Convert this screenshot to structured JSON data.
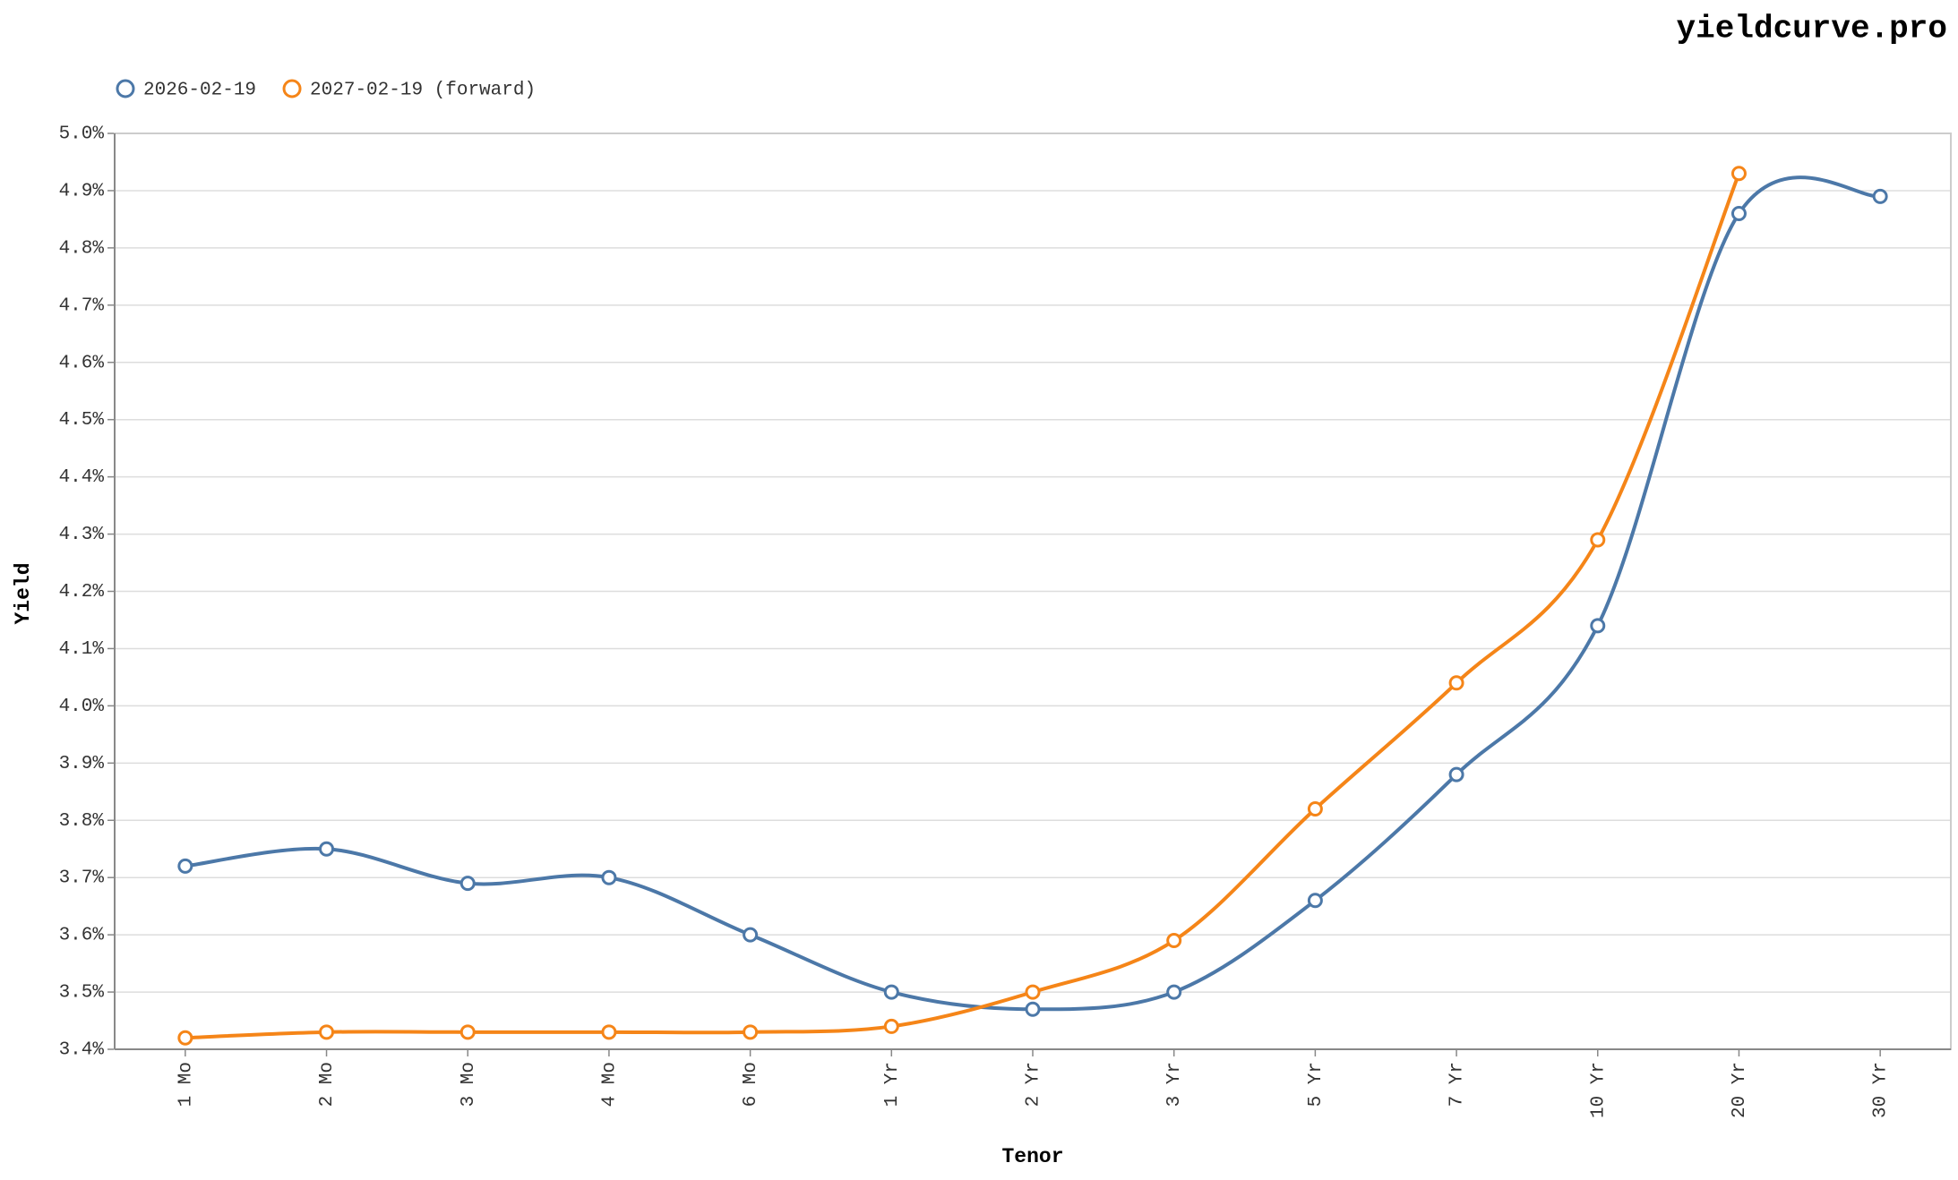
{
  "chart_data": {
    "type": "line",
    "title": "yieldcurve.pro",
    "x_label": "Tenor",
    "y_label": "Yield",
    "categories": [
      "1 Mo",
      "2 Mo",
      "3 Mo",
      "4 Mo",
      "6 Mo",
      "1 Yr",
      "2 Yr",
      "3 Yr",
      "5 Yr",
      "7 Yr",
      "10 Yr",
      "20 Yr",
      "30 Yr"
    ],
    "series": [
      {
        "name": "2026-02-19",
        "color": "#4c78a8",
        "values": [
          3.72,
          3.75,
          3.69,
          3.7,
          3.6,
          3.5,
          3.47,
          3.5,
          3.66,
          3.88,
          4.14,
          4.86,
          4.89
        ]
      },
      {
        "name": "2027-02-19 (forward)",
        "color": "#f58518",
        "values": [
          3.42,
          3.43,
          3.43,
          3.43,
          3.43,
          3.44,
          3.5,
          3.59,
          3.82,
          4.04,
          4.29,
          4.93,
          null
        ]
      }
    ],
    "ylim": [
      3.4,
      5.0
    ],
    "yticks": [
      {
        "value": 3.4,
        "label": "3.4%"
      },
      {
        "value": 3.5,
        "label": "3.5%"
      },
      {
        "value": 3.6,
        "label": "3.6%"
      },
      {
        "value": 3.7,
        "label": "3.7%"
      },
      {
        "value": 3.8,
        "label": "3.8%"
      },
      {
        "value": 3.9,
        "label": "3.9%"
      },
      {
        "value": 4.0,
        "label": "4.0%"
      },
      {
        "value": 4.1,
        "label": "4.1%"
      },
      {
        "value": 4.2,
        "label": "4.2%"
      },
      {
        "value": 4.3,
        "label": "4.3%"
      },
      {
        "value": 4.4,
        "label": "4.4%"
      },
      {
        "value": 4.5,
        "label": "4.5%"
      },
      {
        "value": 4.6,
        "label": "4.6%"
      },
      {
        "value": 4.7,
        "label": "4.7%"
      },
      {
        "value": 4.8,
        "label": "4.8%"
      },
      {
        "value": 4.9,
        "label": "4.9%"
      },
      {
        "value": 5.0,
        "label": "5.0%"
      }
    ],
    "grid": true,
    "legend": "top-left"
  }
}
